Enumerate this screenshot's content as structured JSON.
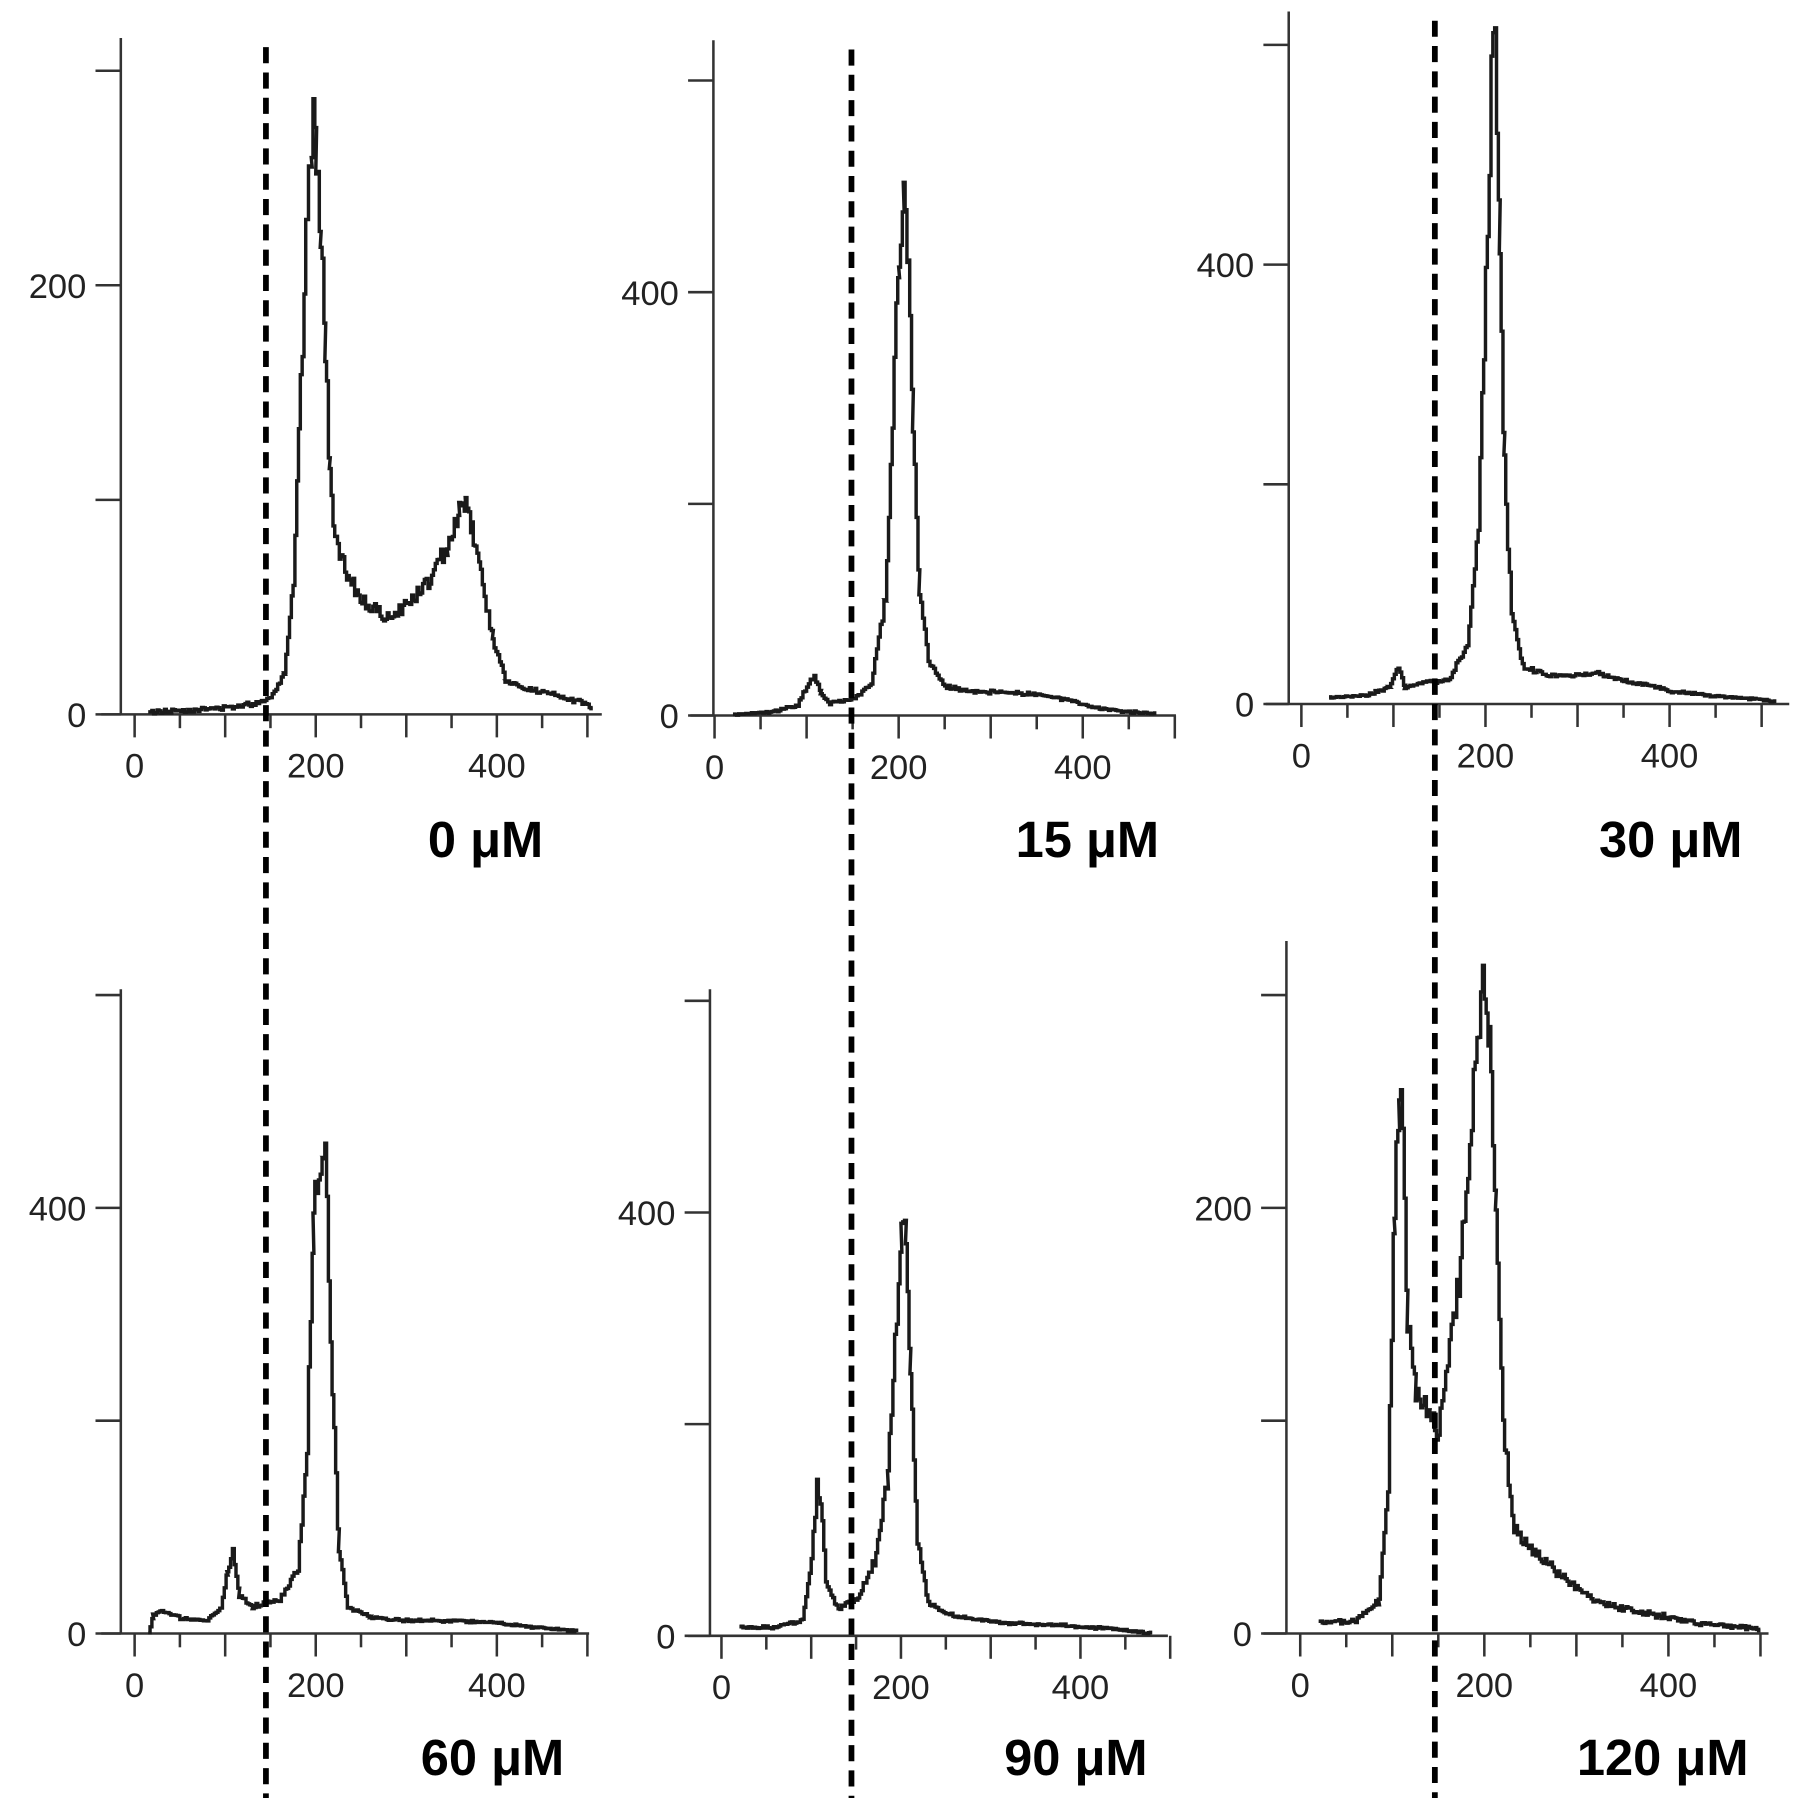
{
  "chart_data": {
    "type": "line",
    "gate_value": 145,
    "panels": [
      {
        "label": "0 μM",
        "x_ticks": [
          0,
          200,
          400
        ],
        "x_ticklabels": [
          "0",
          "200",
          "400"
        ],
        "xlim": [
          0,
          500
        ],
        "y_ticks": [
          0,
          100,
          200,
          300
        ],
        "y_ticklabels": [
          "0",
          "",
          "200",
          ""
        ],
        "ylim": [
          0,
          315
        ],
        "points": [
          [
            15,
            1
          ],
          [
            60,
            2
          ],
          [
            100,
            3
          ],
          [
            130,
            5
          ],
          [
            150,
            8
          ],
          [
            165,
            20
          ],
          [
            175,
            60
          ],
          [
            183,
            150
          ],
          [
            190,
            230
          ],
          [
            195,
            275
          ],
          [
            200,
            265
          ],
          [
            205,
            230
          ],
          [
            210,
            170
          ],
          [
            215,
            110
          ],
          [
            222,
            80
          ],
          [
            235,
            62
          ],
          [
            255,
            52
          ],
          [
            275,
            45
          ],
          [
            290,
            48
          ],
          [
            310,
            55
          ],
          [
            330,
            65
          ],
          [
            345,
            80
          ],
          [
            358,
            95
          ],
          [
            365,
            100
          ],
          [
            372,
            88
          ],
          [
            382,
            65
          ],
          [
            395,
            35
          ],
          [
            410,
            15
          ],
          [
            430,
            12
          ],
          [
            460,
            9
          ],
          [
            490,
            6
          ],
          [
            505,
            3
          ]
        ]
      },
      {
        "label": "15 μM",
        "x_ticks": [
          0,
          200,
          400
        ],
        "x_ticklabels": [
          "0",
          "200",
          "400"
        ],
        "xlim": [
          0,
          500
        ],
        "y_ticks": [
          0,
          200,
          400,
          600
        ],
        "y_ticklabels": [
          "0",
          "",
          "400",
          ""
        ],
        "ylim": [
          0,
          640
        ],
        "points": [
          [
            20,
            1
          ],
          [
            60,
            3
          ],
          [
            90,
            10
          ],
          [
            100,
            28
          ],
          [
            108,
            38
          ],
          [
            115,
            20
          ],
          [
            125,
            12
          ],
          [
            150,
            15
          ],
          [
            170,
            30
          ],
          [
            185,
            110
          ],
          [
            195,
            330
          ],
          [
            200,
            440
          ],
          [
            205,
            490
          ],
          [
            210,
            420
          ],
          [
            215,
            270
          ],
          [
            222,
            120
          ],
          [
            232,
            50
          ],
          [
            250,
            28
          ],
          [
            280,
            22
          ],
          [
            320,
            22
          ],
          [
            350,
            20
          ],
          [
            380,
            15
          ],
          [
            410,
            8
          ],
          [
            440,
            4
          ],
          [
            480,
            2
          ]
        ]
      },
      {
        "label": "30 μM",
        "x_ticks": [
          0,
          200,
          400
        ],
        "x_ticklabels": [
          "0",
          "200",
          "400"
        ],
        "xlim": [
          0,
          520
        ],
        "y_ticks": [
          0,
          200,
          400,
          600
        ],
        "y_ticklabels": [
          "0",
          "",
          "400",
          ""
        ],
        "ylim": [
          0,
          630
        ],
        "points": [
          [
            30,
            6
          ],
          [
            70,
            8
          ],
          [
            95,
            15
          ],
          [
            105,
            35
          ],
          [
            112,
            15
          ],
          [
            130,
            20
          ],
          [
            160,
            22
          ],
          [
            180,
            55
          ],
          [
            192,
            160
          ],
          [
            200,
            380
          ],
          [
            206,
            560
          ],
          [
            210,
            600
          ],
          [
            215,
            430
          ],
          [
            220,
            220
          ],
          [
            228,
            80
          ],
          [
            240,
            35
          ],
          [
            270,
            25
          ],
          [
            320,
            28
          ],
          [
            360,
            20
          ],
          [
            400,
            12
          ],
          [
            450,
            7
          ],
          [
            500,
            4
          ],
          [
            515,
            2
          ]
        ]
      },
      {
        "label": "60 μM",
        "x_ticks": [
          0,
          200,
          400
        ],
        "x_ticklabels": [
          "0",
          "200",
          "400"
        ],
        "xlim": [
          0,
          500
        ],
        "y_ticks": [
          0,
          200,
          400,
          600
        ],
        "y_ticklabels": [
          "0",
          "",
          "400",
          ""
        ],
        "ylim": [
          0,
          600
        ],
        "points": [
          [
            15,
            0
          ],
          [
            20,
            18
          ],
          [
            30,
            22
          ],
          [
            50,
            14
          ],
          [
            80,
            12
          ],
          [
            95,
            25
          ],
          [
            102,
            60
          ],
          [
            108,
            75
          ],
          [
            115,
            35
          ],
          [
            130,
            25
          ],
          [
            160,
            32
          ],
          [
            180,
            60
          ],
          [
            190,
            180
          ],
          [
            197,
            380
          ],
          [
            203,
            450
          ],
          [
            208,
            470
          ],
          [
            212,
            400
          ],
          [
            218,
            230
          ],
          [
            225,
            80
          ],
          [
            235,
            25
          ],
          [
            260,
            15
          ],
          [
            300,
            12
          ],
          [
            350,
            12
          ],
          [
            400,
            10
          ],
          [
            450,
            5
          ],
          [
            490,
            2
          ]
        ]
      },
      {
        "label": "90 μM",
        "x_ticks": [
          0,
          200,
          400
        ],
        "x_ticklabels": [
          "0",
          "200",
          "400"
        ],
        "xlim": [
          0,
          500
        ],
        "y_ticks": [
          0,
          200,
          400,
          600
        ],
        "y_ticklabels": [
          "0",
          "",
          "400",
          ""
        ],
        "ylim": [
          0,
          605
        ],
        "points": [
          [
            20,
            8
          ],
          [
            60,
            8
          ],
          [
            90,
            15
          ],
          [
            100,
            70
          ],
          [
            106,
            140
          ],
          [
            110,
            130
          ],
          [
            116,
            50
          ],
          [
            130,
            25
          ],
          [
            150,
            35
          ],
          [
            170,
            70
          ],
          [
            185,
            150
          ],
          [
            195,
            300
          ],
          [
            200,
            400
          ],
          [
            205,
            370
          ],
          [
            210,
            250
          ],
          [
            218,
            90
          ],
          [
            230,
            30
          ],
          [
            260,
            18
          ],
          [
            320,
            12
          ],
          [
            380,
            10
          ],
          [
            440,
            6
          ],
          [
            480,
            2
          ]
        ]
      },
      {
        "label": "120 μM",
        "x_ticks": [
          0,
          200,
          400
        ],
        "x_ticklabels": [
          "0",
          "200",
          "400"
        ],
        "xlim": [
          0,
          510
        ],
        "y_ticks": [
          0,
          100,
          200,
          300
        ],
        "y_ticklabels": [
          "0",
          "",
          "200",
          ""
        ],
        "ylim": [
          0,
          325
        ],
        "points": [
          [
            20,
            5
          ],
          [
            60,
            6
          ],
          [
            85,
            15
          ],
          [
            95,
            70
          ],
          [
            102,
            200
          ],
          [
            107,
            260
          ],
          [
            111,
            240
          ],
          [
            116,
            150
          ],
          [
            125,
            115
          ],
          [
            140,
            105
          ],
          [
            150,
            95
          ],
          [
            158,
            120
          ],
          [
            168,
            150
          ],
          [
            180,
            200
          ],
          [
            190,
            270
          ],
          [
            196,
            300
          ],
          [
            200,
            315
          ],
          [
            205,
            280
          ],
          [
            212,
            200
          ],
          [
            220,
            95
          ],
          [
            232,
            50
          ],
          [
            250,
            40
          ],
          [
            280,
            28
          ],
          [
            320,
            15
          ],
          [
            370,
            10
          ],
          [
            430,
            5
          ],
          [
            500,
            2
          ]
        ]
      }
    ]
  }
}
